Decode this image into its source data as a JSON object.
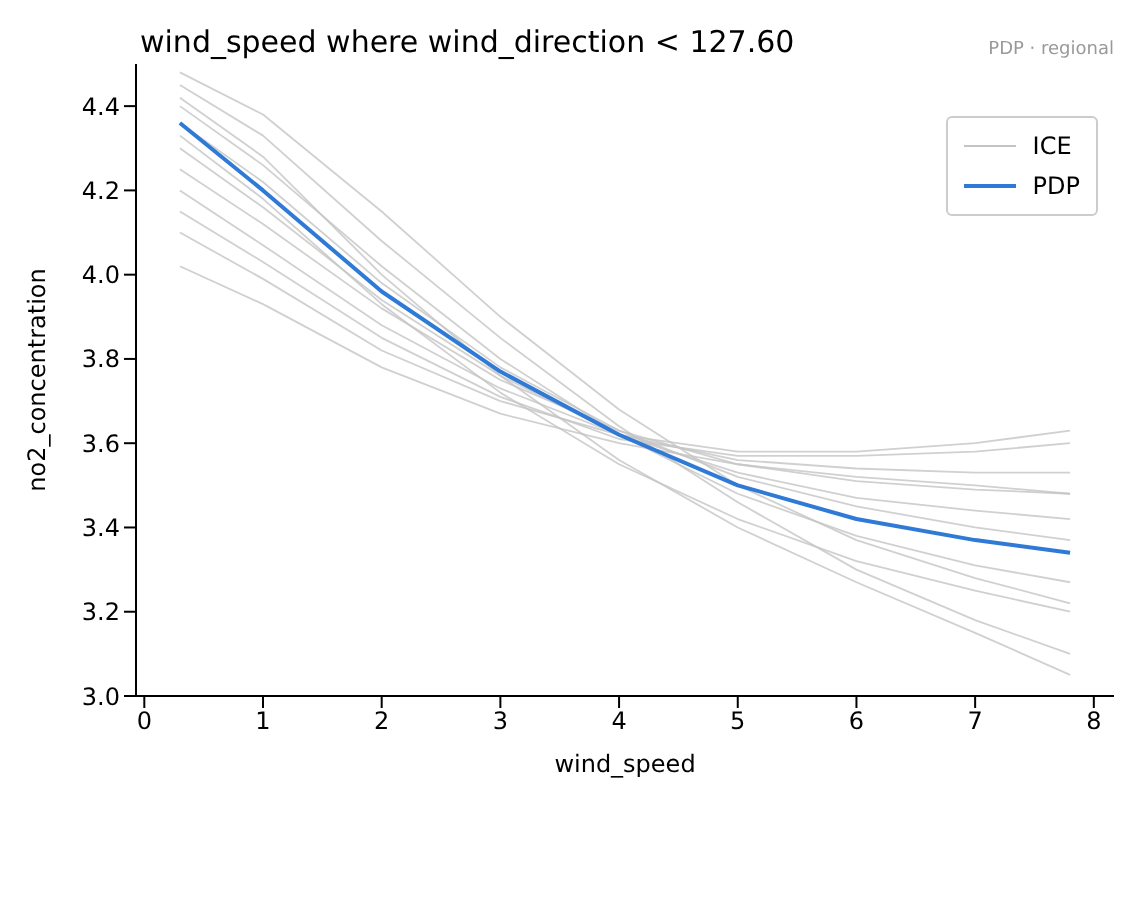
{
  "chart_data": {
    "type": "line",
    "title": "wind_speed where wind_direction < 127.60",
    "annotations": [
      "PDP · regional"
    ],
    "xlabel": "wind_speed",
    "ylabel": "no2_concentration",
    "x": [
      0.3,
      1,
      2,
      3,
      4,
      5,
      6,
      7,
      7.8
    ],
    "xlim": [
      -0.07,
      8.17
    ],
    "xticks": [
      0,
      1,
      2,
      3,
      4,
      5,
      6,
      7,
      8
    ],
    "ylim": [
      3.0,
      4.5
    ],
    "yticks": [
      {
        "value": 3.0,
        "label": "3.0"
      },
      {
        "value": 3.2,
        "label": "3.2"
      },
      {
        "value": 3.4,
        "label": "3.4"
      },
      {
        "value": 3.6,
        "label": "3.6"
      },
      {
        "value": 3.8,
        "label": "3.8"
      },
      {
        "value": 4.0,
        "label": "4.0"
      },
      {
        "value": 4.2,
        "label": "4.2"
      },
      {
        "value": 4.4,
        "label": "4.4"
      }
    ],
    "grid": false,
    "legend": "top right",
    "marker": "none",
    "line_style": "solid",
    "series": [
      {
        "name": "ICE",
        "color": "#c4c4c4",
        "values": [
          4.48,
          4.38,
          4.15,
          3.9,
          3.68,
          3.5,
          3.37,
          3.28,
          3.22
        ]
      },
      {
        "color": "#c4c4c4",
        "values": [
          4.45,
          4.33,
          4.08,
          3.85,
          3.64,
          3.46,
          3.3,
          3.18,
          3.1
        ]
      },
      {
        "color": "#c4c4c4",
        "values": [
          4.4,
          4.26,
          4.02,
          3.8,
          3.62,
          3.48,
          3.38,
          3.31,
          3.27
        ]
      },
      {
        "color": "#c4c4c4",
        "values": [
          4.36,
          4.22,
          3.98,
          3.78,
          3.63,
          3.52,
          3.45,
          3.4,
          3.37
        ]
      },
      {
        "color": "#c4c4c4",
        "values": [
          4.3,
          4.16,
          3.94,
          3.76,
          3.62,
          3.53,
          3.47,
          3.44,
          3.42
        ]
      },
      {
        "color": "#c4c4c4",
        "values": [
          4.25,
          4.12,
          3.92,
          3.75,
          3.63,
          3.55,
          3.51,
          3.49,
          3.48
        ]
      },
      {
        "color": "#c4c4c4",
        "values": [
          4.2,
          4.07,
          3.88,
          3.73,
          3.62,
          3.56,
          3.54,
          3.53,
          3.53
        ]
      },
      {
        "color": "#c4c4c4",
        "values": [
          4.15,
          4.03,
          3.85,
          3.71,
          3.61,
          3.57,
          3.57,
          3.58,
          3.6
        ]
      },
      {
        "color": "#c4c4c4",
        "values": [
          4.1,
          3.99,
          3.82,
          3.7,
          3.62,
          3.58,
          3.58,
          3.6,
          3.63
        ]
      },
      {
        "color": "#c4c4c4",
        "values": [
          4.02,
          3.93,
          3.78,
          3.67,
          3.6,
          3.55,
          3.52,
          3.5,
          3.48
        ]
      },
      {
        "color": "#c4c4c4",
        "values": [
          4.42,
          4.28,
          4.0,
          3.76,
          3.56,
          3.4,
          3.27,
          3.15,
          3.05
        ]
      },
      {
        "color": "#c4c4c4",
        "values": [
          4.33,
          4.18,
          3.93,
          3.72,
          3.55,
          3.42,
          3.32,
          3.25,
          3.2
        ]
      },
      {
        "name": "PDP",
        "color": "#2f7ad6",
        "values": [
          4.36,
          4.2,
          3.96,
          3.77,
          3.62,
          3.5,
          3.42,
          3.37,
          3.34
        ]
      }
    ]
  }
}
